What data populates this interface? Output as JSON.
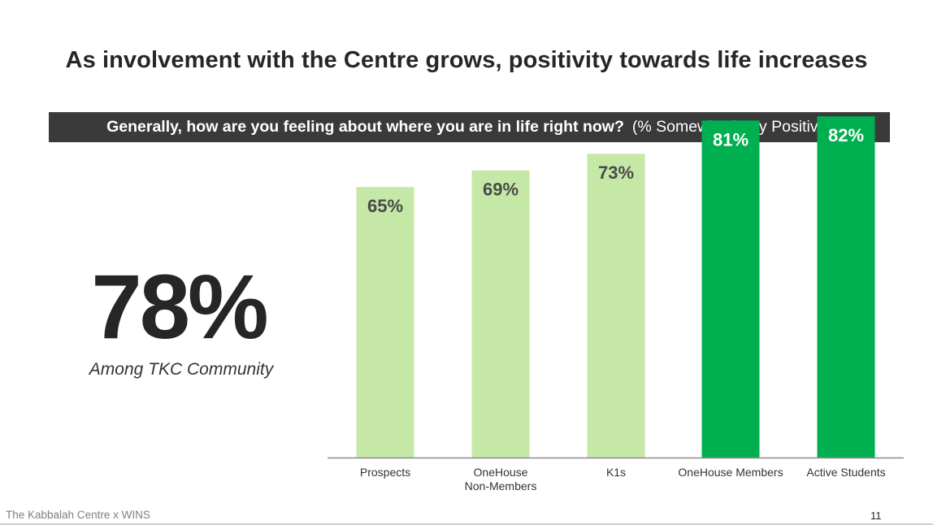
{
  "slide": {
    "title": "As involvement with the Centre grows, positivity towards life increases",
    "question": "Generally, how are you feeling about where you are in life right now?",
    "question_note": "(% Somewhat/Very Positive)",
    "highlight_value": "78%",
    "highlight_label": "Among TKC Community",
    "footer": "The Kabbalah Centre x WINS",
    "page_number": "11"
  },
  "colors": {
    "light_green": "#c6e8a6",
    "dark_green": "#00b050",
    "light_label": "#4a4a4a",
    "dark_label": "#ffffff",
    "question_bar": "#3a3a3a"
  },
  "chart_data": {
    "type": "bar",
    "categories": [
      [
        "Prospects"
      ],
      [
        "OneHouse",
        "Non-Members"
      ],
      [
        "K1s"
      ],
      [
        "OneHouse Members"
      ],
      [
        "Active Students"
      ]
    ],
    "values": [
      65,
      69,
      73,
      81,
      82
    ],
    "value_labels": [
      "65%",
      "69%",
      "73%",
      "81%",
      "82%"
    ],
    "bar_style": [
      "light",
      "light",
      "light",
      "dark",
      "dark"
    ],
    "ylim": [
      0,
      100
    ],
    "grid": false,
    "legend": "none"
  }
}
